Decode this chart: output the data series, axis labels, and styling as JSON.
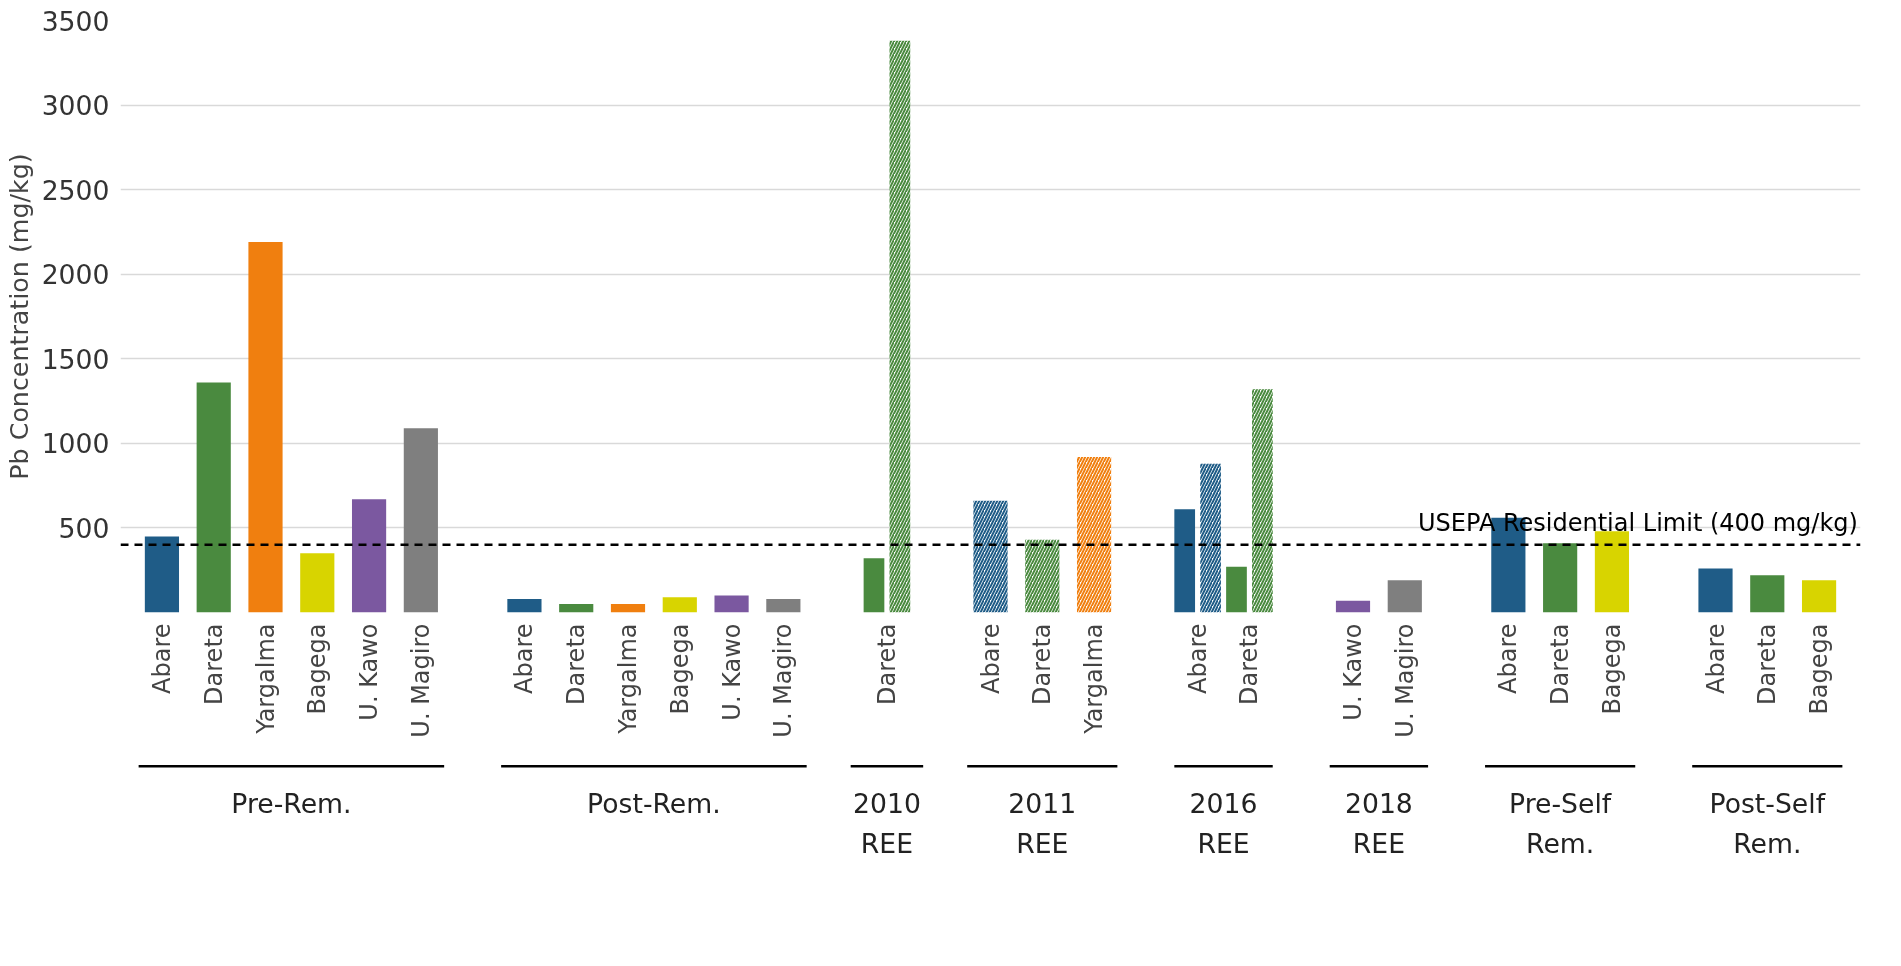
{
  "chart_data": {
    "type": "bar",
    "ylabel": "Pb Concentration (mg/kg)",
    "categories": [
      "Abare",
      "Dareta",
      "Yargalma",
      "Bagega",
      "U. Kawo",
      "U. Magiro",
      null,
      "Abare",
      "Dareta",
      "Yargalma",
      "Bagega",
      "U. Kawo",
      "U. Magiro",
      null,
      "Dareta",
      null,
      "Abare",
      "Dareta",
      "Yargalma",
      null,
      "Abare",
      "Dareta",
      null,
      "U. Kawo",
      "U. Magiro",
      null,
      "Abare",
      "Dareta",
      "Bagega",
      null,
      "Abare",
      "Dareta",
      "Bagega"
    ],
    "series": [
      {
        "colors": [
          "#1f5c87",
          "#4a8a3f",
          "#f07f0f",
          "#d8d400",
          "#7b58a0",
          "#7f7f7f",
          null,
          "#1f5c87",
          "#4a8a3f",
          "#f07f0f",
          "#d8d400",
          "#7b58a0",
          "#7f7f7f",
          null,
          "#4a8a3f",
          null,
          null,
          null,
          null,
          null,
          "#1f5c87",
          "#4a8a3f",
          null,
          "#7b58a0",
          "#7f7f7f",
          null,
          "#1f5c87",
          "#4a8a3f",
          "#d8d400",
          null,
          "#1f5c87",
          "#4a8a3f",
          "#d8d400"
        ],
        "values": [
          450,
          1360,
          2190,
          350,
          670,
          1090,
          null,
          80,
          50,
          50,
          90,
          100,
          80,
          null,
          320,
          null,
          null,
          null,
          null,
          null,
          610,
          270,
          null,
          70,
          190,
          null,
          560,
          410,
          480,
          null,
          260,
          220,
          190
        ]
      },
      {
        "colors": [
          null,
          null,
          null,
          null,
          null,
          null,
          null,
          null,
          null,
          null,
          null,
          null,
          null,
          null,
          "#4a8a3f",
          null,
          "#1f5c87",
          "#4a8a3f",
          "#f07f0f",
          null,
          "#1f5c87",
          "#4a8a3f",
          null,
          null,
          null,
          null,
          null,
          null,
          null,
          null,
          null,
          null,
          null
        ],
        "values": [
          null,
          null,
          null,
          null,
          null,
          null,
          null,
          null,
          null,
          null,
          null,
          null,
          null,
          null,
          3380,
          null,
          660,
          430,
          920,
          null,
          880,
          1320,
          null,
          null,
          null,
          null,
          null,
          null,
          null,
          null,
          null,
          null,
          null
        ]
      }
    ],
    "ylim": [
      0,
      3500
    ],
    "yticks": [
      500,
      1000,
      1500,
      2000,
      2500,
      3000,
      3500
    ],
    "grid": "y",
    "ref_lines": [
      {
        "axis": "y",
        "value": 400,
        "label": "USEPA Residential Limit (400 mg/kg)",
        "color": "#000000",
        "line_style": "dashed"
      }
    ],
    "annotations": [
      "Pre-Rem.",
      "Post-Rem.",
      "2010\nREE",
      "2011\nREE",
      "2016\nREE",
      "2018\nREE",
      "Pre-Self\nRem.",
      "Post-Self\nRem."
    ]
  }
}
